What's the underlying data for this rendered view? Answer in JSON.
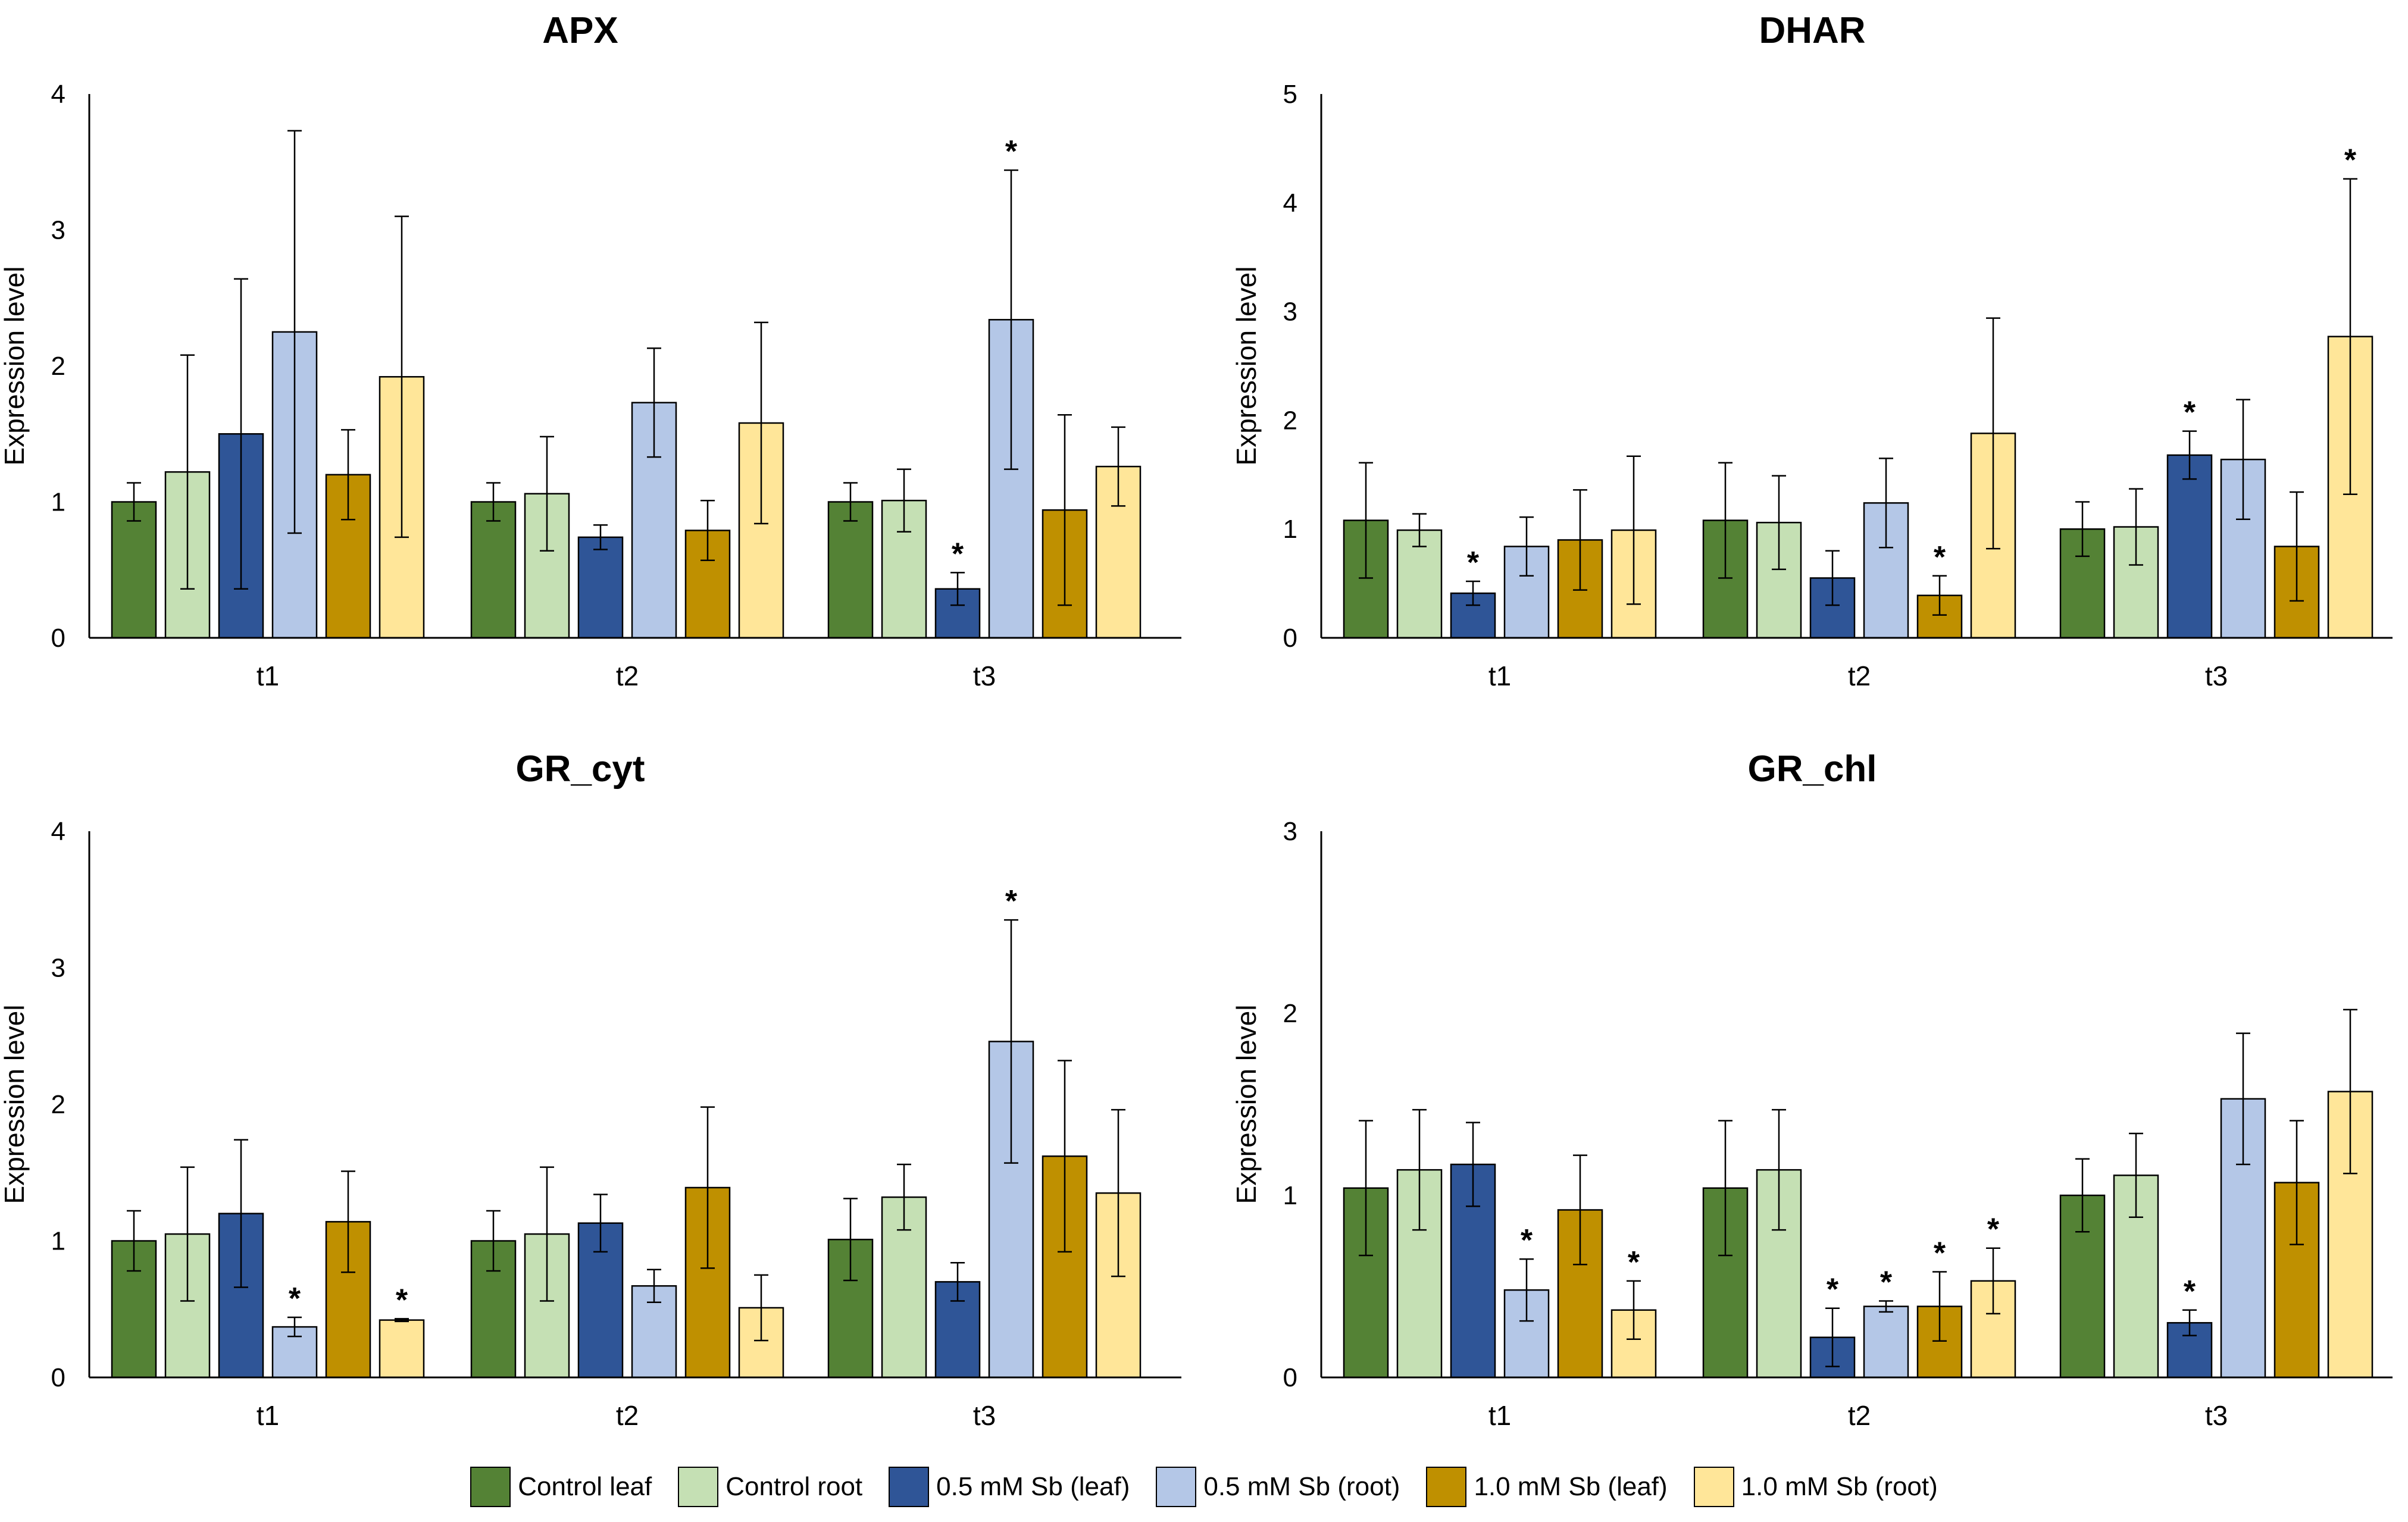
{
  "chart_data": {
    "type": "bar",
    "categories": [
      "t1",
      "t2",
      "t3"
    ],
    "series_names": [
      "Control leaf",
      "Control root",
      "0.5 mM Sb (leaf)",
      "0.5 mM Sb (root)",
      "1.0 mM Sb (leaf)",
      "1.0 mM Sb (root)"
    ],
    "colors": [
      "#548235",
      "#c5e0b4",
      "#2f5597",
      "#b4c7e7",
      "#bf9000",
      "#ffe699"
    ],
    "ylabel": "Expression level",
    "panels": [
      {
        "title": "APX",
        "ylim": [
          0,
          4
        ],
        "yticks": [
          "0",
          "1",
          "2",
          "3",
          "4"
        ],
        "values": [
          [
            1.0,
            1.22,
            1.5,
            2.25,
            1.2,
            1.92
          ],
          [
            1.0,
            1.06,
            0.74,
            1.73,
            0.79,
            1.58
          ],
          [
            1.0,
            1.01,
            0.36,
            2.34,
            0.94,
            1.26
          ]
        ],
        "errors": [
          [
            0.14,
            0.86,
            1.14,
            1.48,
            0.33,
            1.18
          ],
          [
            0.14,
            0.42,
            0.09,
            0.4,
            0.22,
            0.74
          ],
          [
            0.14,
            0.23,
            0.12,
            1.1,
            0.7,
            0.29
          ]
        ],
        "sig": [
          [
            0,
            0,
            0,
            0,
            0,
            0
          ],
          [
            0,
            0,
            0,
            0,
            0,
            0
          ],
          [
            0,
            0,
            1,
            1,
            0,
            0
          ]
        ]
      },
      {
        "title": "DHAR",
        "ylim": [
          0,
          5
        ],
        "yticks": [
          "0",
          "1",
          "2",
          "3",
          "4",
          "5"
        ],
        "values": [
          [
            1.08,
            0.99,
            0.41,
            0.84,
            0.9,
            0.99
          ],
          [
            1.08,
            1.06,
            0.55,
            1.24,
            0.39,
            1.88
          ],
          [
            1.0,
            1.02,
            1.68,
            1.64,
            0.84,
            2.77
          ]
        ],
        "errors": [
          [
            0.53,
            0.15,
            0.11,
            0.27,
            0.46,
            0.68
          ],
          [
            0.53,
            0.43,
            0.25,
            0.41,
            0.18,
            1.06
          ],
          [
            0.25,
            0.35,
            0.22,
            0.55,
            0.5,
            1.45
          ]
        ],
        "sig": [
          [
            0,
            0,
            1,
            0,
            0,
            0
          ],
          [
            0,
            0,
            0,
            0,
            1,
            0
          ],
          [
            0,
            0,
            1,
            0,
            0,
            1
          ]
        ]
      },
      {
        "title": "GR_cyt",
        "ylim": [
          0,
          4
        ],
        "yticks": [
          "0",
          "1",
          "2",
          "3",
          "4"
        ],
        "values": [
          [
            1.0,
            1.05,
            1.2,
            0.37,
            1.14,
            0.42
          ],
          [
            1.0,
            1.05,
            1.13,
            0.67,
            1.39,
            0.51
          ],
          [
            1.01,
            1.32,
            0.7,
            2.46,
            1.62,
            1.35
          ]
        ],
        "errors": [
          [
            0.22,
            0.49,
            0.54,
            0.07,
            0.37,
            0.01
          ],
          [
            0.22,
            0.49,
            0.21,
            0.12,
            0.59,
            0.24
          ],
          [
            0.3,
            0.24,
            0.14,
            0.89,
            0.7,
            0.61
          ]
        ],
        "sig": [
          [
            0,
            0,
            0,
            1,
            0,
            1
          ],
          [
            0,
            0,
            0,
            0,
            0,
            0
          ],
          [
            0,
            0,
            0,
            1,
            0,
            0
          ]
        ]
      },
      {
        "title": "GR_chl",
        "ylim": [
          0,
          3
        ],
        "yticks": [
          "0",
          "1",
          "2",
          "3"
        ],
        "values": [
          [
            1.04,
            1.14,
            1.17,
            0.48,
            0.92,
            0.37
          ],
          [
            1.04,
            1.14,
            0.22,
            0.39,
            0.39,
            0.53
          ],
          [
            1.0,
            1.11,
            0.3,
            1.53,
            1.07,
            1.57
          ]
        ],
        "errors": [
          [
            0.37,
            0.33,
            0.23,
            0.17,
            0.3,
            0.16
          ],
          [
            0.37,
            0.33,
            0.16,
            0.03,
            0.19,
            0.18
          ],
          [
            0.2,
            0.23,
            0.07,
            0.36,
            0.34,
            0.45
          ]
        ],
        "sig": [
          [
            0,
            0,
            0,
            1,
            0,
            1
          ],
          [
            0,
            0,
            1,
            1,
            1,
            1
          ],
          [
            0,
            0,
            1,
            0,
            0,
            0
          ]
        ]
      }
    ],
    "legend_position": "bottom-center"
  }
}
